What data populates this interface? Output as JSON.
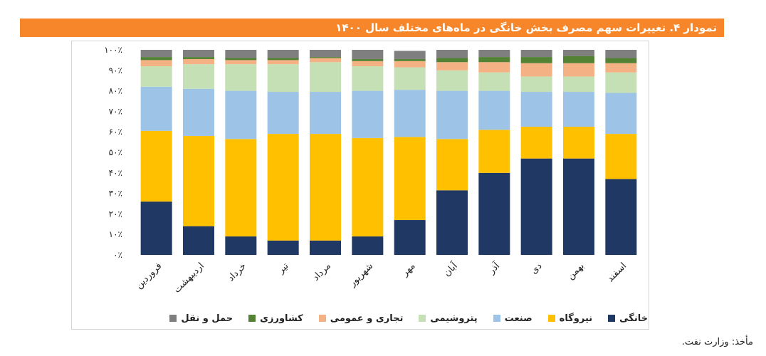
{
  "title": "نمودار ۴. تغییرات سهم مصرف بخش خانگی در ماه‌های مختلف سال ۱۴۰۰",
  "source": "مأخذ: وزارت نفت.",
  "chart_data": {
    "type": "bar",
    "stacked": true,
    "title": "نمودار ۴. تغییرات سهم مصرف بخش خانگی در ماه‌های مختلف سال ۱۴۰۰",
    "ylim": [
      0,
      100
    ],
    "y_ticks": [
      "۰٪",
      "۱۰٪",
      "۲۰٪",
      "۳۰٪",
      "۴۰٪",
      "۵۰٪",
      "۶۰٪",
      "۷۰٪",
      "۸۰٪",
      "۹۰٪",
      "۱۰۰٪"
    ],
    "categories": [
      "فروردین",
      "اردیبهشت",
      "خرداد",
      "تیر",
      "مرداد",
      "شهریور",
      "مهر",
      "آبان",
      "آذر",
      "دی",
      "بهمن",
      "اسفند"
    ],
    "series": [
      {
        "name": "خانگی",
        "color": "#1f3864",
        "values": [
          26,
          14,
          9,
          7,
          7,
          9,
          17,
          31.5,
          40,
          47,
          47,
          37
        ]
      },
      {
        "name": "نیروگاه",
        "color": "#ffc000",
        "values": [
          34.5,
          44,
          47.5,
          52,
          52,
          48,
          40.5,
          25,
          21,
          15.5,
          15.5,
          22
        ]
      },
      {
        "name": "صنعت",
        "color": "#9dc3e6",
        "values": [
          21.5,
          23,
          23.5,
          20.5,
          20.5,
          23,
          23,
          23.5,
          19,
          17,
          17,
          20
        ]
      },
      {
        "name": "پتروشیمی",
        "color": "#c5e0b4",
        "values": [
          10,
          12,
          13,
          13.5,
          14.5,
          12,
          11,
          10,
          9,
          7.5,
          7.5,
          10
        ]
      },
      {
        "name": "تجاری و عمومی",
        "color": "#f4b183",
        "values": [
          3,
          2.5,
          2,
          2,
          2,
          2.5,
          3,
          4,
          5,
          6.5,
          6.5,
          4.5
        ]
      },
      {
        "name": "کشاورزی",
        "color": "#548235",
        "values": [
          1.5,
          1,
          1,
          1,
          0.5,
          1,
          1,
          2,
          2.5,
          3,
          3.5,
          2.5
        ]
      },
      {
        "name": "حمل و نقل",
        "color": "#7f7f7f",
        "values": [
          3.5,
          3.5,
          4,
          4,
          3.5,
          4.5,
          4,
          4,
          3.5,
          3.5,
          3,
          4
        ]
      }
    ]
  }
}
